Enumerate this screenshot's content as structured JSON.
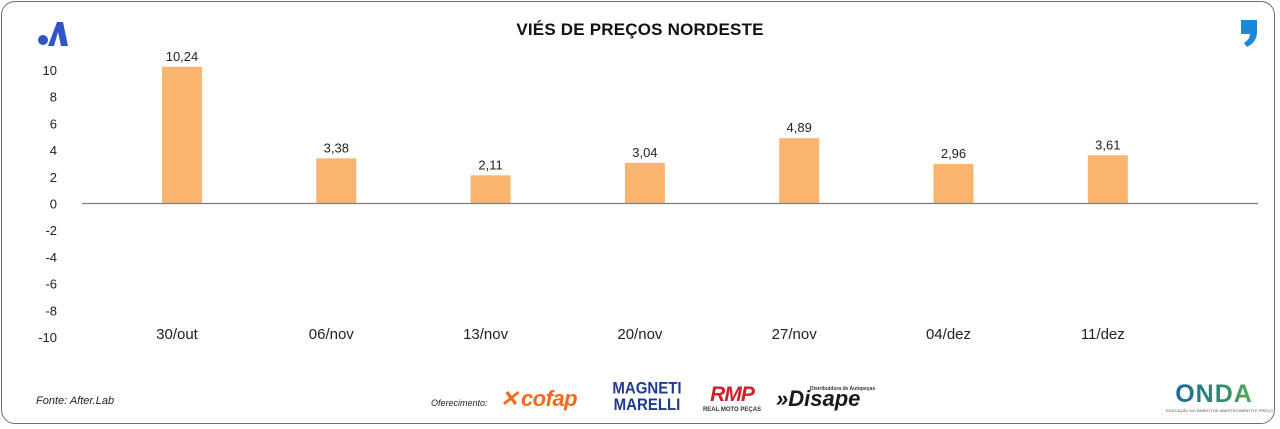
{
  "header": {
    "title": "VIÉS DE PREÇOS NORDESTE"
  },
  "icons": {
    "brand": "after-lab-logo-icon",
    "quote": "quote-icon"
  },
  "colors": {
    "bar": "#fbb46e",
    "axis": "#7f7f7f",
    "brand_blue": "#2f56c9"
  },
  "chart_data": {
    "type": "bar",
    "title": "VIÉS DE PREÇOS NORDESTE",
    "xlabel": "",
    "ylabel": "",
    "categories": [
      "30/out",
      "06/nov",
      "13/nov",
      "20/nov",
      "27/nov",
      "04/dez",
      "11/dez"
    ],
    "values": [
      10.24,
      3.38,
      2.11,
      3.04,
      4.89,
      2.96,
      3.61
    ],
    "data_labels": [
      "10,24",
      "3,38",
      "2,11",
      "3,04",
      "4,89",
      "2,96",
      "3,61"
    ],
    "ylim": [
      -10,
      10
    ],
    "yticks": [
      10,
      8,
      6,
      4,
      2,
      0,
      -2,
      -4,
      -6,
      -8,
      -10
    ],
    "ytick_labels": [
      "10",
      "8",
      "6",
      "4",
      "2",
      "0",
      "-2",
      "-4",
      "-6",
      "-8",
      "-10"
    ],
    "grid": false,
    "legend": "none"
  },
  "footer": {
    "source": "Fonte: After.Lab",
    "sponsor_label": "Oferecimento:",
    "sponsors": {
      "cofap": "cofap",
      "magneti_line1": "MAGNETI",
      "magneti_line2": "MARELLI",
      "rmp": "RMP",
      "rmp_sub": "REAL MOTO PEÇAS",
      "disape_small": "Distribuidora de Autopeças",
      "disape": "»Disape"
    },
    "onda": "ONDA",
    "onda_sub": "EDUCAÇÃO NO ÂMBITO DE ABASTECIMENTO E PREÇO"
  }
}
